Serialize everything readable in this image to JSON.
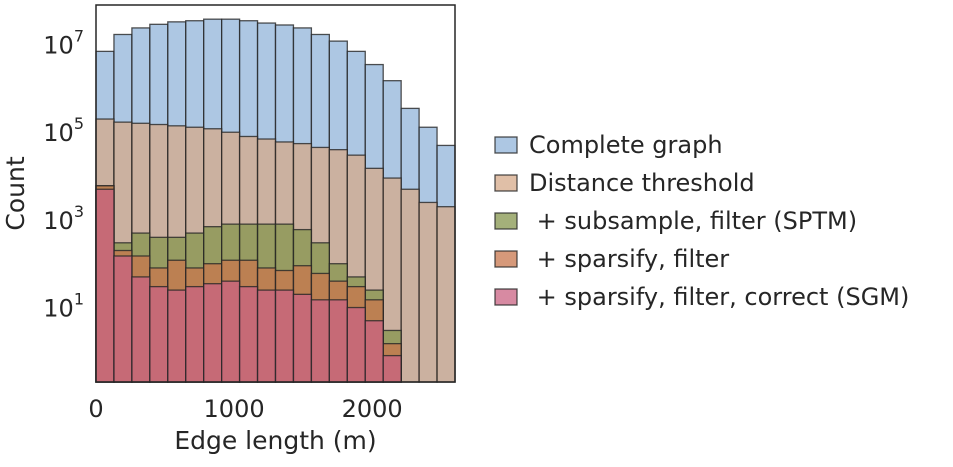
{
  "chart_data": {
    "type": "bar",
    "subtype": "overlaid-histogram",
    "title": "",
    "xlabel": "Edge length (m)",
    "ylabel": "Count",
    "xlim": [
      0,
      2600
    ],
    "ylim": [
      0.2,
      80000000
    ],
    "y_scale": "log",
    "x_ticks": [
      0,
      1000,
      2000
    ],
    "x_tick_labels": [
      "0",
      "1000",
      "2000"
    ],
    "y_ticks": [
      10,
      1000,
      100000,
      10000000
    ],
    "y_tick_labels": [
      {
        "base": "10",
        "exp": "1"
      },
      {
        "base": "10",
        "exp": "3"
      },
      {
        "base": "10",
        "exp": "5"
      },
      {
        "base": "10",
        "exp": "7"
      }
    ],
    "grid": false,
    "legend_position": "right",
    "bin_width": 130,
    "bin_starts": [
      0,
      130,
      260,
      390,
      520,
      650,
      780,
      910,
      1040,
      1170,
      1300,
      1430,
      1560,
      1690,
      1820,
      1950,
      2080,
      2210,
      2340,
      2470
    ],
    "series": [
      {
        "name": "Complete graph",
        "color": "#92b4d9",
        "values": [
          7000000,
          17000000,
          24000000,
          29000000,
          33000000,
          35000000,
          38000000,
          38000000,
          35000000,
          31000000,
          28000000,
          24000000,
          17000000,
          12000000,
          7000000,
          3500000,
          1500000,
          350000,
          130000,
          50000
        ]
      },
      {
        "name": "Distance threshold",
        "color": "#d6a98a",
        "values": [
          200000,
          170000,
          160000,
          150000,
          140000,
          130000,
          120000,
          100000,
          80000,
          70000,
          60000,
          55000,
          45000,
          40000,
          30000,
          15000,
          9000,
          5000,
          2500,
          2000
        ]
      },
      {
        "name": " + subsample, filter (SPTM)",
        "color": "#86964d",
        "values": [
          6000,
          300,
          500,
          400,
          400,
          500,
          700,
          800,
          800,
          800,
          800,
          600,
          300,
          100,
          50,
          25,
          3,
          0,
          0,
          0
        ]
      },
      {
        "name": " + sparsify, filter",
        "color": "#c8774e",
        "values": [
          6000,
          200,
          150,
          80,
          120,
          80,
          100,
          120,
          120,
          80,
          70,
          90,
          60,
          40,
          30,
          15,
          1.5,
          0,
          0,
          0
        ]
      },
      {
        "name": " + sparsify, filter, correct (SGM)",
        "color": "#c96383",
        "values": [
          5000,
          150,
          50,
          30,
          25,
          30,
          35,
          40,
          30,
          25,
          25,
          20,
          15,
          15,
          10,
          5,
          0.8,
          0,
          0,
          0
        ]
      }
    ]
  }
}
